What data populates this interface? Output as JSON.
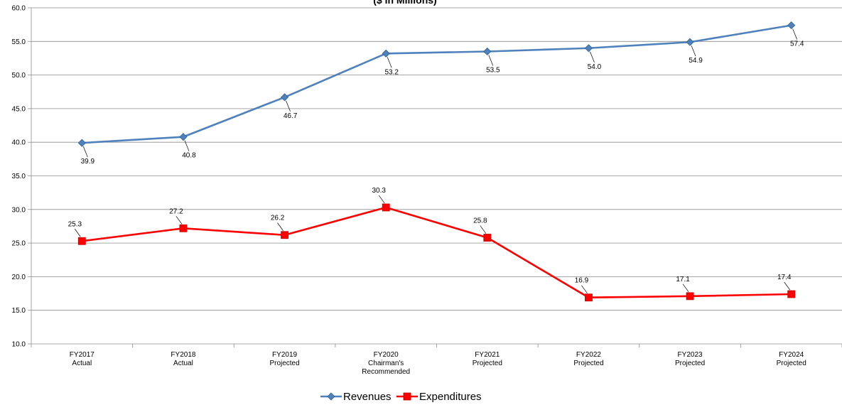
{
  "chart_data": {
    "type": "line",
    "title": "($ in Millions)",
    "xlabel": "",
    "ylabel": "",
    "ylim": [
      10,
      60
    ],
    "ytick_step": 5,
    "grid": true,
    "legend": "bottom-center",
    "categories": [
      [
        "FY2017",
        "Actual"
      ],
      [
        "FY2018",
        "Actual"
      ],
      [
        "FY2019",
        "Projected"
      ],
      [
        "FY2020",
        "Chairman's",
        "Recommended"
      ],
      [
        "FY2021",
        "Projected"
      ],
      [
        "FY2022",
        "Projected"
      ],
      [
        "FY2023",
        "Projected"
      ],
      [
        "FY2024",
        "Projected"
      ]
    ],
    "series": [
      {
        "name": "Revenues",
        "color": "#4f81bd",
        "marker": "diamond",
        "values": [
          39.9,
          40.8,
          46.7,
          53.2,
          53.5,
          54.0,
          54.9,
          57.4
        ],
        "labels": [
          "39.9",
          "40.8",
          "46.7",
          "53.2",
          "53.5",
          "54.0",
          "54.9",
          "57.4"
        ]
      },
      {
        "name": "Expenditures",
        "color": "#ff0000",
        "marker": "square",
        "values": [
          25.3,
          27.2,
          26.2,
          30.3,
          25.8,
          16.9,
          17.1,
          17.4
        ],
        "labels": [
          "25.3",
          "27.2",
          "26.2",
          "30.3",
          "25.8",
          "16.9",
          "17.1",
          "17.4"
        ]
      }
    ]
  }
}
